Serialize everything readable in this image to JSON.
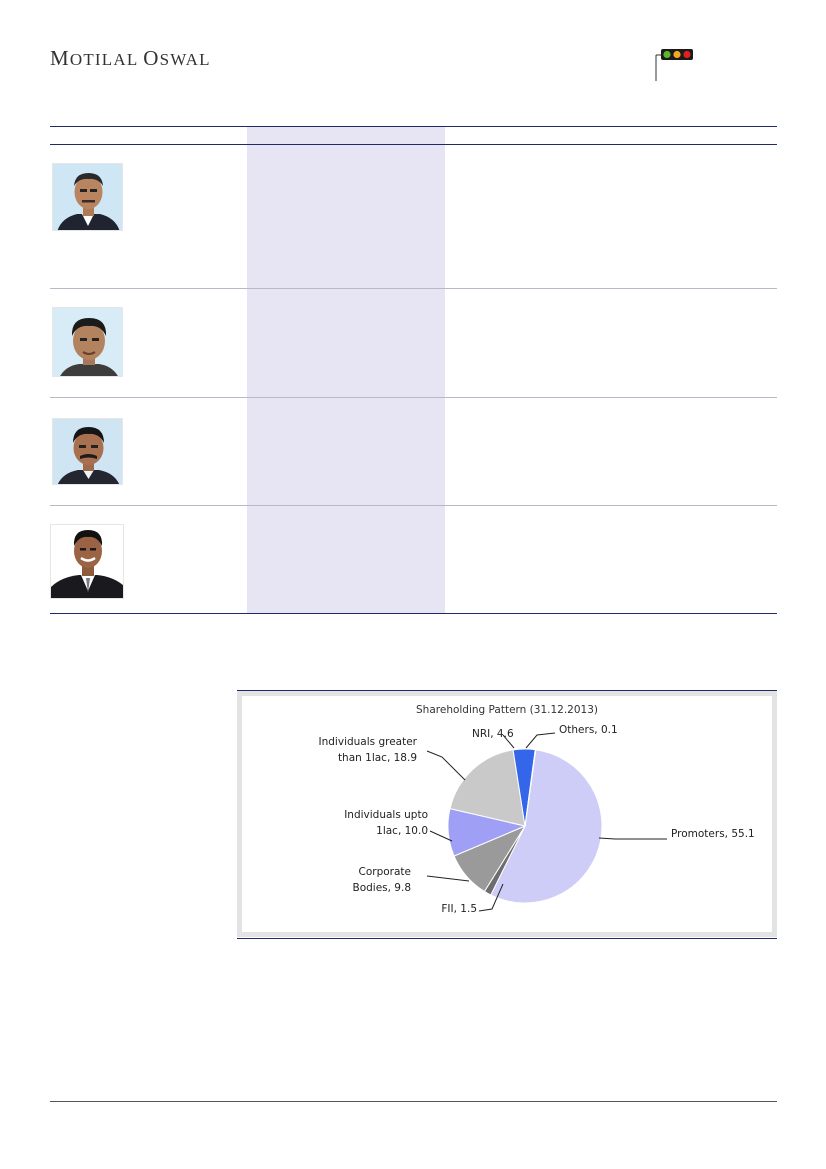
{
  "header": {
    "brand_first_cap": "M",
    "brand_first_rest": "OTILAL",
    "brand_second_cap": "O",
    "brand_second_rest": "SWAL",
    "signal_colors": [
      "#5cb82a",
      "#f5a623",
      "#e02020"
    ]
  },
  "management": {
    "rows": [
      {
        "photo": "portrait-1"
      },
      {
        "photo": "portrait-2"
      },
      {
        "photo": "portrait-3"
      },
      {
        "photo": "portrait-4"
      }
    ]
  },
  "chart_data": {
    "type": "pie",
    "title": "Shareholding Pattern (31.12.2013)",
    "slices": [
      {
        "label": "Promoters",
        "value": 55.1,
        "text": "Promoters, 55.1",
        "color": "#cdcdf7"
      },
      {
        "label": "FII",
        "value": 1.5,
        "text": "FII, 1.5",
        "color": "#6d6d6d"
      },
      {
        "label": "Corporate Bodies",
        "value": 9.8,
        "text_line1": "Corporate",
        "text_line2": "Bodies, 9.8",
        "color": "#9a9a9a"
      },
      {
        "label": "Individuals upto 1lac",
        "value": 10.0,
        "text_line1": "Individuals upto",
        "text_line2": "1lac, 10.0",
        "color": "#9f9ff5"
      },
      {
        "label": "Individuals greater than 1lac",
        "value": 18.9,
        "text_line1": "Individuals greater",
        "text_line2": "than 1lac, 18.9",
        "color": "#c9c9c9"
      },
      {
        "label": "NRI",
        "value": 4.6,
        "text": "NRI, 4.6",
        "color": "#3366e8"
      },
      {
        "label": "Others",
        "value": 0.1,
        "text": "Others, 0.1",
        "color": "#333333"
      }
    ]
  }
}
